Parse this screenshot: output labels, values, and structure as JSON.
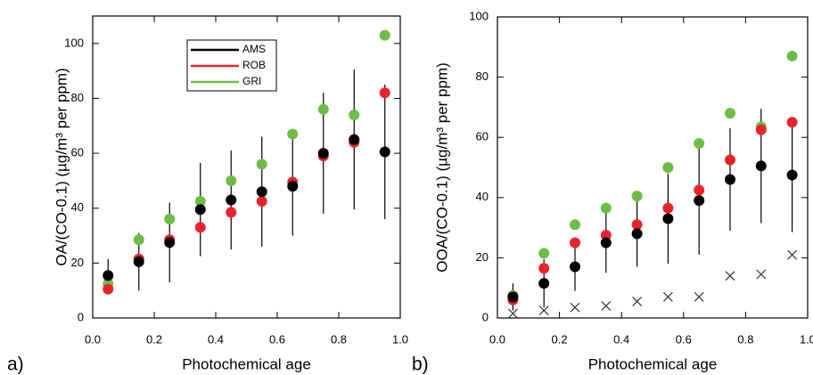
{
  "chart_data": [
    {
      "type": "scatter",
      "panel_label": "a)",
      "xlabel": "Photochemical age",
      "ylabel": "OA/(CO-0.1) (µg/m³ per ppm)",
      "x": [
        0.05,
        0.15,
        0.25,
        0.35,
        0.45,
        0.55,
        0.65,
        0.75,
        0.85,
        0.95
      ],
      "xlim": [
        0,
        1
      ],
      "xticks": [
        {
          "value": 0,
          "label": "0.0"
        },
        0.2,
        0.4,
        0.6,
        0.8,
        {
          "value": 1,
          "label": "1.0"
        }
      ],
      "ylim": [
        0,
        110
      ],
      "yticks": [
        0,
        20,
        40,
        60,
        80,
        100
      ],
      "legend": true,
      "series": [
        {
          "name": "AMS",
          "color": "#000000",
          "values": [
            15.5,
            20.5,
            27.5,
            39.5,
            43,
            46,
            48,
            60,
            65,
            60.5
          ],
          "errors": [
            6,
            10.5,
            14.5,
            17,
            18,
            20,
            18,
            22,
            25.5,
            24.5
          ]
        },
        {
          "name": "ROB",
          "color": "#e8242a",
          "values": [
            10.5,
            21.5,
            28.5,
            33,
            38.5,
            42.5,
            49.5,
            59,
            64,
            82
          ]
        },
        {
          "name": "GRI",
          "color": "#6dbd45",
          "values": [
            12.5,
            28.5,
            36,
            42.5,
            50,
            56,
            67,
            76,
            74,
            103
          ]
        }
      ]
    },
    {
      "type": "scatter",
      "panel_label": "b)",
      "xlabel": "Photochemical age",
      "ylabel": "OOA/(CO-0.1) (µg/m³ per ppm)",
      "x": [
        0.05,
        0.15,
        0.25,
        0.35,
        0.45,
        0.55,
        0.65,
        0.75,
        0.85,
        0.95
      ],
      "xlim": [
        0,
        1
      ],
      "xticks": [
        {
          "value": 0,
          "label": "0.0"
        },
        0.2,
        0.4,
        0.6,
        0.8,
        {
          "value": 1,
          "label": "1.0"
        }
      ],
      "ylim": [
        0,
        100
      ],
      "yticks": [
        0,
        20,
        40,
        60,
        80,
        100
      ],
      "legend": false,
      "series": [
        {
          "color": "#000000",
          "values": [
            7,
            11.5,
            17,
            25,
            28,
            33,
            39,
            46,
            50.5,
            47.5
          ],
          "errors": [
            4.5,
            8,
            8,
            10,
            11,
            15,
            18,
            17,
            19,
            19
          ]
        },
        {
          "color": "#e8242a",
          "values": [
            6,
            16.5,
            25,
            27.5,
            31,
            36.5,
            42.5,
            52.5,
            62.5,
            65
          ]
        },
        {
          "color": "#6dbd45",
          "values": [
            7.5,
            21.5,
            31,
            36.5,
            40.5,
            50,
            58,
            68,
            63.5,
            87
          ]
        },
        {
          "color": "#333333",
          "marker": "x",
          "values": [
            1.5,
            2.5,
            3.5,
            4,
            5.5,
            7,
            7,
            14,
            14.5,
            21
          ]
        }
      ]
    }
  ]
}
